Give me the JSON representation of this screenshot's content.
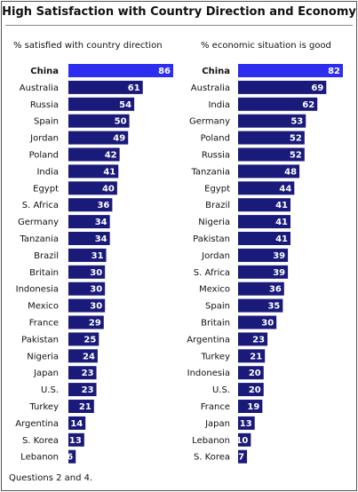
{
  "title": "High Satisfaction with Country Direction and Economy",
  "footnote": "Questions 2 and 4.",
  "colors": {
    "bar": "#1a1a7a",
    "highlight": "#2d2df0"
  },
  "chart_data": [
    {
      "type": "bar",
      "orientation": "horizontal",
      "title": "% satisfied with country direction",
      "highlight": "China",
      "categories": [
        "China",
        "Australia",
        "Russia",
        "Spain",
        "Jordan",
        "Poland",
        "India",
        "Egypt",
        "S. Africa",
        "Germany",
        "Tanzania",
        "Brazil",
        "Britain",
        "Indonesia",
        "Mexico",
        "France",
        "Pakistan",
        "Nigeria",
        "Japan",
        "U.S.",
        "Turkey",
        "Argentina",
        "S. Korea",
        "Lebanon"
      ],
      "values": [
        86,
        61,
        54,
        50,
        49,
        42,
        41,
        40,
        36,
        34,
        34,
        31,
        30,
        30,
        30,
        29,
        25,
        24,
        23,
        23,
        21,
        14,
        13,
        6
      ],
      "xlim": [
        0,
        86
      ]
    },
    {
      "type": "bar",
      "orientation": "horizontal",
      "title": "% economic situation is good",
      "highlight": "China",
      "categories": [
        "China",
        "Australia",
        "India",
        "Germany",
        "Poland",
        "Russia",
        "Tanzania",
        "Egypt",
        "Brazil",
        "Nigeria",
        "Pakistan",
        "Jordan",
        "S. Africa",
        "Mexico",
        "Spain",
        "Britain",
        "Argentina",
        "Turkey",
        "Indonesia",
        "U.S.",
        "France",
        "Japan",
        "Lebanon",
        "S. Korea"
      ],
      "values": [
        82,
        69,
        62,
        53,
        52,
        52,
        48,
        44,
        41,
        41,
        41,
        39,
        39,
        36,
        35,
        30,
        23,
        21,
        20,
        20,
        19,
        13,
        10,
        7
      ],
      "xlim": [
        0,
        82
      ]
    }
  ]
}
